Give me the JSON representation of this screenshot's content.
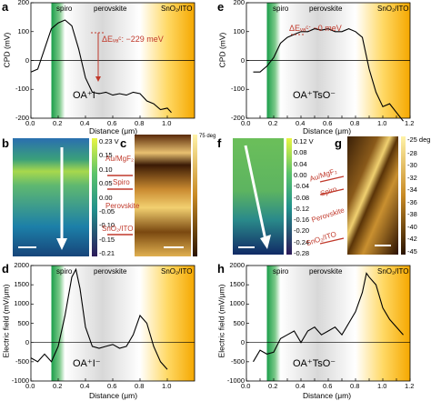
{
  "panels": {
    "a": {
      "label": "a"
    },
    "b": {
      "label": "b"
    },
    "c": {
      "label": "c"
    },
    "d": {
      "label": "d"
    },
    "e": {
      "label": "e"
    },
    "f": {
      "label": "f"
    },
    "g": {
      "label": "g"
    },
    "h": {
      "label": "h"
    }
  },
  "left": {
    "cpd_sample": "OA⁺I⁻",
    "ef_sample": "OA⁺I⁻",
    "delta_label": "ΔEᵥₐᶜ: −229 meV",
    "b_scale_top": "0.23 V",
    "b_scale": [
      "0.15",
      "0.10",
      "0.05",
      "0.00",
      "-0.05",
      "-0.10",
      "-0.15",
      "-0.21"
    ],
    "c_scale_top": "75 deg",
    "c_layers": [
      "Au/MgF₂",
      "Spiro",
      "Perovskite",
      "SnO₂/ITO"
    ]
  },
  "right": {
    "cpd_sample": "OA⁺TsO⁻",
    "ef_sample": "OA⁺TsO⁻",
    "delta_label": "ΔEᵥₐᶜ: ~0 meV",
    "f_scale_top": "0.12 V",
    "f_scale": [
      "0.08",
      "0.04",
      "0.00",
      "-0.04",
      "-0.08",
      "-0.12",
      "-0.16",
      "-0.20",
      "-0.24",
      "-0.28"
    ],
    "g_scale_top": "-25 deg",
    "g_scale": [
      "-28",
      "-30",
      "-32",
      "-34",
      "-36",
      "-38",
      "-40",
      "-42",
      "-45"
    ],
    "g_layers": [
      "Au/MgF₂",
      "Spiro",
      "Perovskite",
      "SnO₂/ITO"
    ]
  },
  "regions": {
    "spiro": "spiro",
    "perovskite": "perovskite",
    "sno2": "SnO₂/ITO"
  },
  "axes": {
    "x_label": "Distance (μm)",
    "cpd_label": "CPD (mV)",
    "ef_label": "Electric field (mV/μm)"
  },
  "chart_data": [
    {
      "type": "line",
      "name": "panel-a",
      "x": [
        0.0,
        0.05,
        0.1,
        0.15,
        0.2,
        0.25,
        0.3,
        0.35,
        0.4,
        0.45,
        0.5,
        0.55,
        0.6,
        0.65,
        0.7,
        0.75,
        0.8,
        0.85,
        0.9,
        0.95,
        1.0,
        1.03
      ],
      "y": [
        -40,
        -30,
        40,
        110,
        130,
        140,
        120,
        40,
        -60,
        -110,
        -115,
        -110,
        -120,
        -115,
        -120,
        -110,
        -115,
        -140,
        -150,
        -170,
        -165,
        -180
      ],
      "xlim": [
        0,
        1.2
      ],
      "ylim": [
        -200,
        200
      ],
      "yticks": [
        -200,
        -100,
        0,
        100,
        200
      ],
      "xticks": [
        0.0,
        0.2,
        0.4,
        0.6,
        0.8,
        1.0
      ]
    },
    {
      "type": "line",
      "name": "panel-e",
      "x": [
        0.05,
        0.1,
        0.15,
        0.2,
        0.25,
        0.3,
        0.35,
        0.4,
        0.45,
        0.5,
        0.55,
        0.6,
        0.65,
        0.7,
        0.75,
        0.8,
        0.85,
        0.9,
        0.95,
        1.0,
        1.05,
        1.1,
        1.15
      ],
      "y": [
        -40,
        -40,
        -20,
        10,
        60,
        80,
        90,
        100,
        100,
        110,
        105,
        110,
        100,
        100,
        110,
        100,
        80,
        -30,
        -110,
        -160,
        -150,
        -180,
        -210
      ],
      "xlim": [
        0,
        1.2
      ],
      "ylim": [
        -200,
        200
      ],
      "yticks": [
        -200,
        -100,
        0,
        100,
        200
      ],
      "xticks": [
        0.0,
        0.1,
        0.2,
        0.3,
        0.4,
        0.5,
        0.6,
        0.7,
        0.8,
        0.9,
        1.0,
        1.1,
        1.2
      ]
    },
    {
      "type": "line",
      "name": "panel-d",
      "x": [
        0.0,
        0.05,
        0.1,
        0.15,
        0.2,
        0.25,
        0.3,
        0.33,
        0.36,
        0.4,
        0.45,
        0.5,
        0.55,
        0.6,
        0.65,
        0.7,
        0.75,
        0.8,
        0.85,
        0.9,
        0.95,
        1.0
      ],
      "y": [
        -400,
        -500,
        -300,
        -500,
        -100,
        700,
        1700,
        1900,
        1400,
        400,
        -100,
        -150,
        -100,
        -50,
        -150,
        -100,
        200,
        700,
        500,
        -100,
        -500,
        -700
      ],
      "xlim": [
        0,
        1.2
      ],
      "ylim": [
        -1000,
        2000
      ],
      "yticks": [
        -1000,
        -500,
        0,
        500,
        1000,
        1500,
        2000
      ],
      "xticks": [
        0.0,
        0.2,
        0.4,
        0.6,
        0.8,
        1.0
      ]
    },
    {
      "type": "line",
      "name": "panel-h",
      "x": [
        0.05,
        0.1,
        0.15,
        0.2,
        0.25,
        0.3,
        0.35,
        0.4,
        0.45,
        0.5,
        0.55,
        0.6,
        0.65,
        0.7,
        0.75,
        0.8,
        0.85,
        0.88,
        0.9,
        0.95,
        1.0,
        1.05,
        1.1,
        1.15
      ],
      "y": [
        -500,
        -200,
        -300,
        -250,
        100,
        200,
        300,
        0,
        300,
        400,
        200,
        300,
        400,
        200,
        500,
        800,
        1300,
        1800,
        1700,
        1500,
        900,
        600,
        400,
        200
      ],
      "xlim": [
        0,
        1.2
      ],
      "ylim": [
        -1000,
        2000
      ],
      "yticks": [
        -1000,
        -500,
        0,
        500,
        1000,
        1500,
        2000
      ],
      "xticks": [
        0.0,
        0.1,
        0.2,
        0.3,
        0.4,
        0.5,
        0.6,
        0.7,
        0.8,
        0.9,
        1.0,
        1.1,
        1.2
      ]
    }
  ]
}
